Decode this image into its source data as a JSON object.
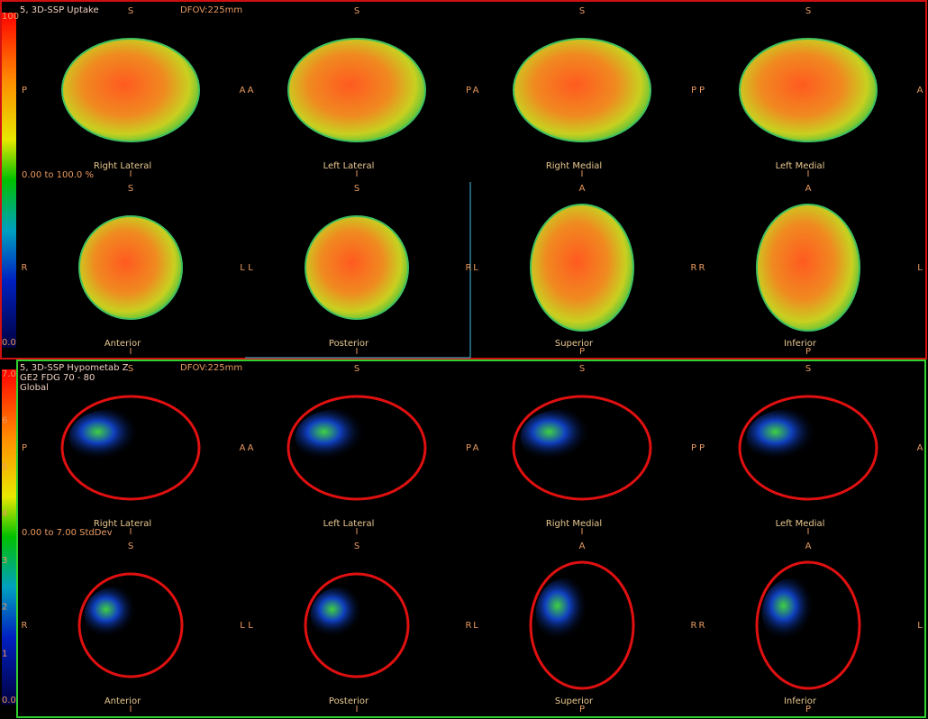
{
  "panels": [
    {
      "title": "5, 3D-SSP Uptake",
      "subtitle_lines": [],
      "dfov": "DFOV:225mm",
      "range": "0.00 to 100.0  %",
      "scale_labels": [
        "100",
        "0.0"
      ],
      "views": [
        {
          "name": "Right Lateral",
          "top": "S",
          "bottom": "I",
          "left": "P",
          "right": "A"
        },
        {
          "name": "Left Lateral",
          "top": "S",
          "bottom": "I",
          "left": "A",
          "right": "P"
        },
        {
          "name": "Right Medial",
          "top": "S",
          "bottom": "I",
          "left": "A",
          "right": "P"
        },
        {
          "name": "Left Medial",
          "top": "S",
          "bottom": "I",
          "left": "P",
          "right": "A"
        },
        {
          "name": "Anterior",
          "top": "S",
          "bottom": "I",
          "left": "R",
          "right": "L"
        },
        {
          "name": "Posterior",
          "top": "S",
          "bottom": "I",
          "left": "L",
          "right": "R"
        },
        {
          "name": "Superior",
          "top": "A",
          "bottom": "P",
          "left": "L",
          "right": "R"
        },
        {
          "name": "Inferior",
          "top": "A",
          "bottom": "P",
          "left": "R",
          "right": "L"
        }
      ]
    },
    {
      "title": "5, 3D-SSP Hypometab Z",
      "subtitle_lines": [
        "GE2 FDG 70 - 80",
        "Global"
      ],
      "dfov": "DFOV:225mm",
      "range": "0.00 to 7.00  StdDev",
      "scale_labels": [
        "7.0",
        "6",
        "5",
        "4",
        "3",
        "2",
        "1",
        "0.0"
      ],
      "views": [
        {
          "name": "Right Lateral",
          "top": "S",
          "bottom": "I",
          "left": "P",
          "right": "A"
        },
        {
          "name": "Left Lateral",
          "top": "S",
          "bottom": "I",
          "left": "A",
          "right": "P"
        },
        {
          "name": "Right Medial",
          "top": "S",
          "bottom": "I",
          "left": "A",
          "right": "P"
        },
        {
          "name": "Left Medial",
          "top": "S",
          "bottom": "I",
          "left": "P",
          "right": "A"
        },
        {
          "name": "Anterior",
          "top": "S",
          "bottom": "I",
          "left": "R",
          "right": "L"
        },
        {
          "name": "Posterior",
          "top": "S",
          "bottom": "I",
          "left": "L",
          "right": "R"
        },
        {
          "name": "Superior",
          "top": "A",
          "bottom": "P",
          "left": "L",
          "right": "R"
        },
        {
          "name": "Inferior",
          "top": "A",
          "bottom": "P",
          "left": "R",
          "right": "L"
        }
      ]
    }
  ]
}
